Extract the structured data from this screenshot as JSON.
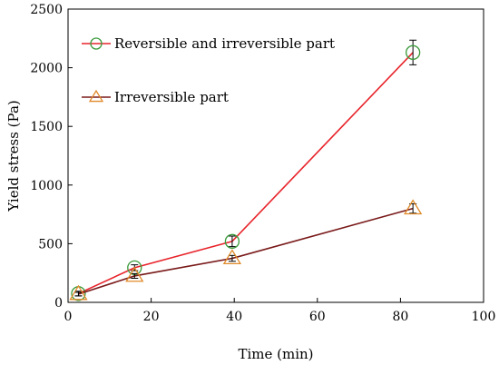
{
  "chart_data": {
    "type": "line",
    "xlabel": "Time (min)",
    "ylabel": "Yield stress (Pa)",
    "xlim": [
      0,
      100
    ],
    "ylim": [
      0,
      2500
    ],
    "xticks": [
      0,
      20,
      40,
      60,
      80,
      100
    ],
    "yticks": [
      0,
      500,
      1000,
      1500,
      2000,
      2500
    ],
    "grid": false,
    "legend_position": "top-left",
    "series": [
      {
        "name": "Reversible and irreversible part",
        "marker": "circle",
        "line_color": "#e8242b",
        "marker_color": "#3a9a3a",
        "x": [
          2.5,
          16,
          39.5,
          83
        ],
        "y": [
          75,
          295,
          520,
          2130
        ],
        "error": [
          20,
          25,
          45,
          105
        ]
      },
      {
        "name": "Irreversible part",
        "marker": "triangle",
        "line_color": "#7a1a1a",
        "marker_color": "#e08a2a",
        "x": [
          2.5,
          16,
          39.5,
          83
        ],
        "y": [
          70,
          225,
          375,
          800
        ],
        "error": [
          15,
          20,
          25,
          40
        ]
      }
    ]
  }
}
